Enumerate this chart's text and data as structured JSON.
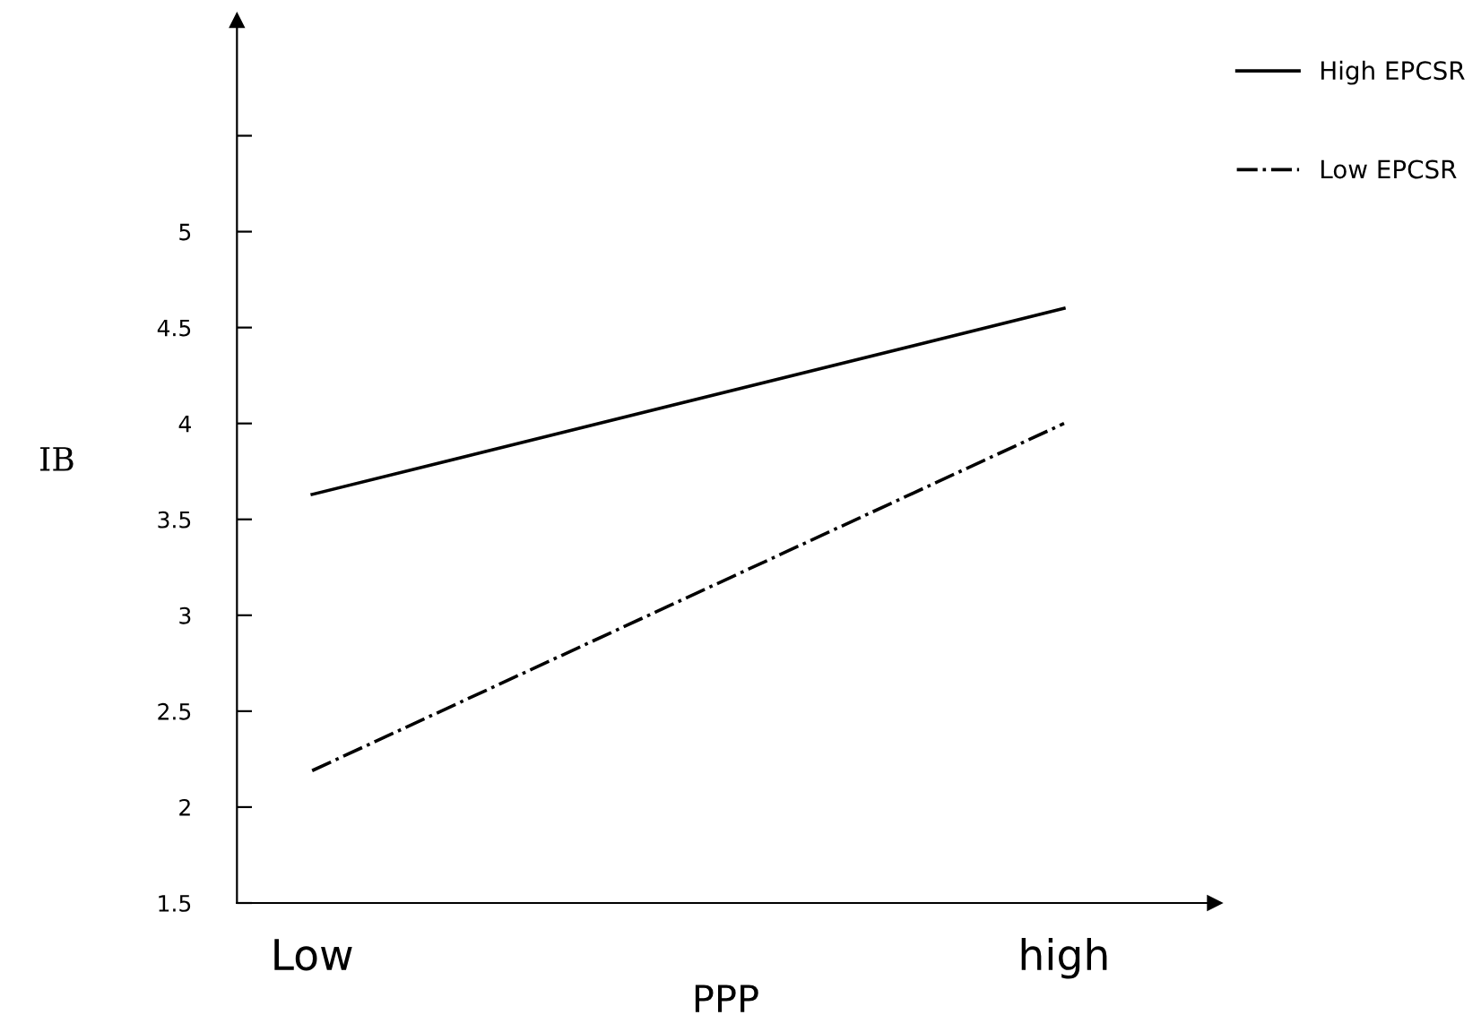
{
  "chart_data": {
    "type": "line",
    "xlabel": "PPP",
    "ylabel": "IB",
    "categories": [
      "Low",
      "high"
    ],
    "series": [
      {
        "name": "High EPCSR",
        "color": "#000000",
        "line_style": "solid",
        "values": [
          3.63,
          4.6
        ]
      },
      {
        "name": "Low EPCSR",
        "color": "#000000",
        "line_style": "dashdot",
        "values": [
          2.19,
          4.0
        ]
      }
    ],
    "ylim": [
      1.5,
      6.1
    ],
    "yticks": [
      1.5,
      2,
      2.5,
      3,
      3.5,
      4,
      4.5,
      5,
      {
        "value": 5.5,
        "label": null
      }
    ],
    "grid": false,
    "legend": "right",
    "marker": "none"
  }
}
